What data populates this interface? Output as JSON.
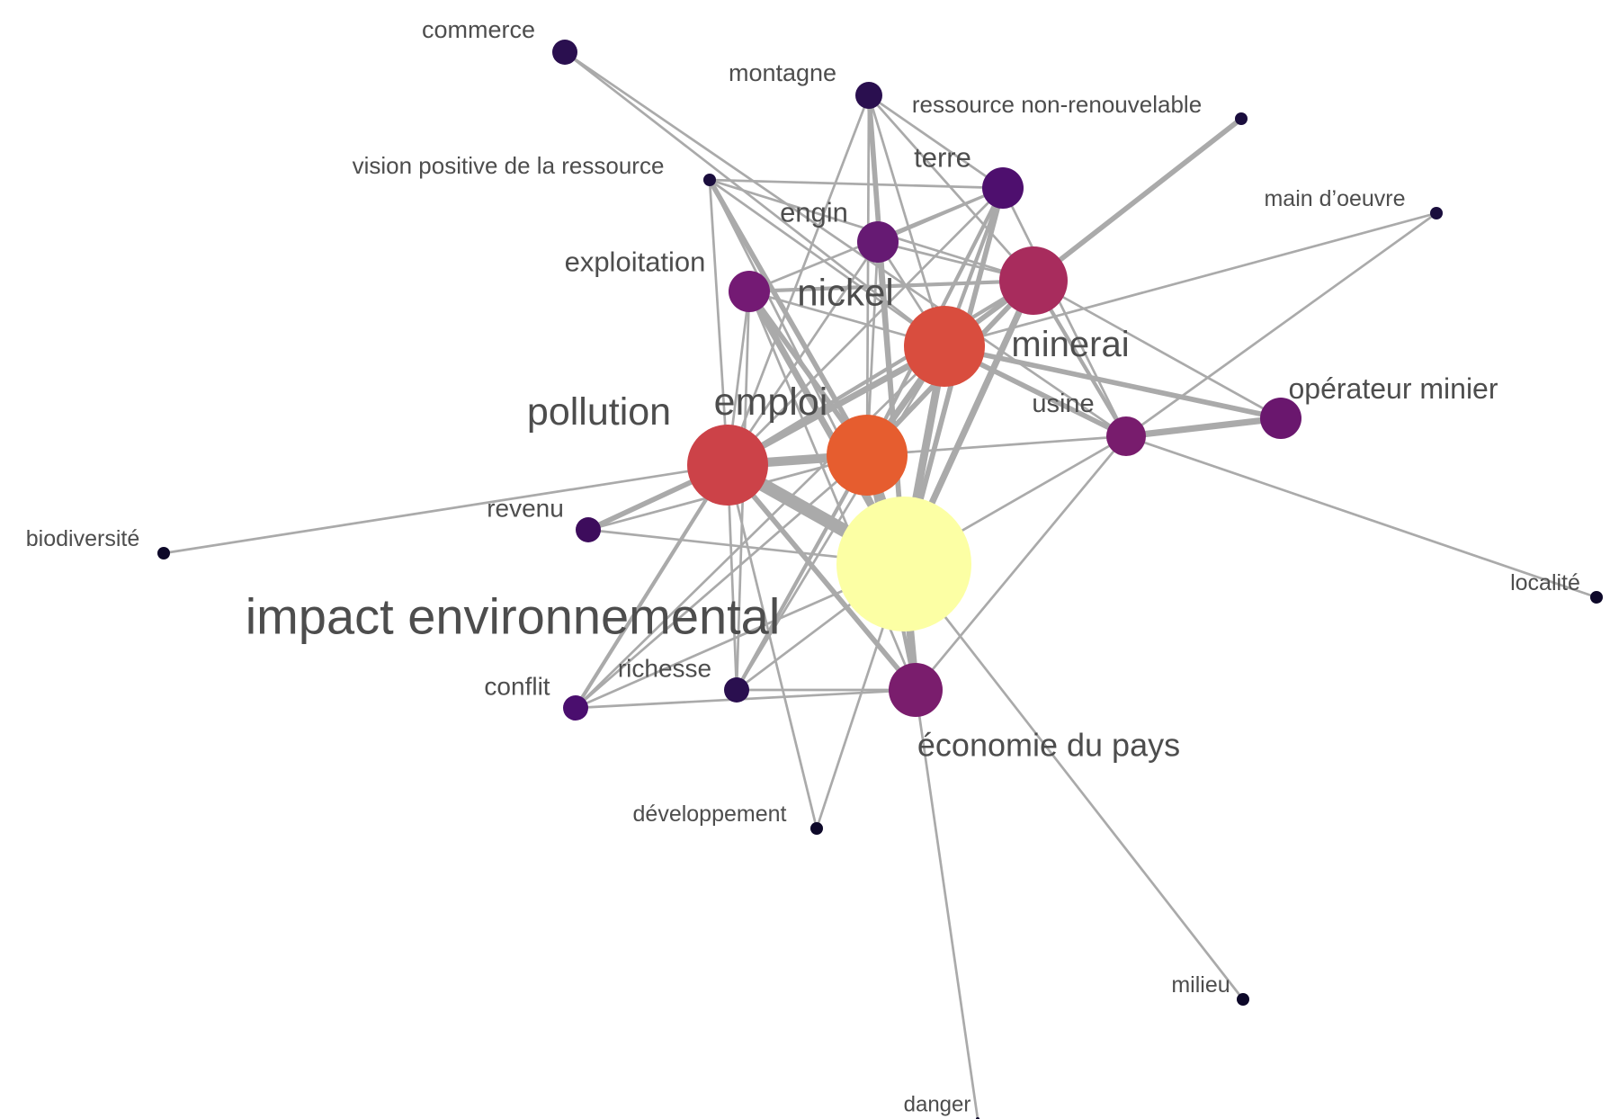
{
  "graph": {
    "edge_color": "#aaaaaa",
    "label_color": "#4d4d4d",
    "nodes": [
      {
        "id": "commerce",
        "label": "commerce",
        "color": "#2a0f4f"
      },
      {
        "id": "montagne",
        "label": "montagne",
        "color": "#2a0f4f"
      },
      {
        "id": "ressource",
        "label": "ressource non-renouvelable",
        "color": "#1a0d3d"
      },
      {
        "id": "vision",
        "label": "vision positive de la ressource",
        "color": "#1a0d3d"
      },
      {
        "id": "terre",
        "label": "terre",
        "color": "#4e0f6e"
      },
      {
        "id": "main",
        "label": "main d’oeuvre",
        "color": "#1a0d3d"
      },
      {
        "id": "engin",
        "label": "engin",
        "color": "#661a73"
      },
      {
        "id": "exploitation",
        "label": "exploitation",
        "color": "#741a74"
      },
      {
        "id": "nickel",
        "label": "nickel",
        "color": "#a82c5d"
      },
      {
        "id": "minerai",
        "label": "minerai",
        "color": "#d94d3e"
      },
      {
        "id": "usine",
        "label": "usine",
        "color": "#781c6d"
      },
      {
        "id": "operateur",
        "label": "opérateur minier",
        "color": "#6a176e"
      },
      {
        "id": "pollution",
        "label": "pollution",
        "color": "#cc4248"
      },
      {
        "id": "emploi",
        "label": "emploi",
        "color": "#e65d2f"
      },
      {
        "id": "revenu",
        "label": "revenu",
        "color": "#3d0c5c"
      },
      {
        "id": "biodiversite",
        "label": "biodiversité",
        "color": "#0d0829"
      },
      {
        "id": "impact",
        "label": "impact environnemental",
        "color": "#fcffa4"
      },
      {
        "id": "localite",
        "label": "localité",
        "color": "#0d0829"
      },
      {
        "id": "conflit",
        "label": "conflit",
        "color": "#4a0e6e"
      },
      {
        "id": "richesse",
        "label": "richesse",
        "color": "#2a0f4f"
      },
      {
        "id": "economie",
        "label": "économie du pays",
        "color": "#7a1d6d"
      },
      {
        "id": "developpement",
        "label": "développement",
        "color": "#0d0829"
      },
      {
        "id": "milieu",
        "label": "milieu",
        "color": "#0d0829"
      },
      {
        "id": "danger",
        "label": "danger",
        "color": "#0d0829"
      }
    ],
    "edges": [
      [
        "commerce",
        "minerai",
        1
      ],
      [
        "commerce",
        "usine",
        1
      ],
      [
        "montagne",
        "nickel",
        1
      ],
      [
        "montagne",
        "impact",
        3
      ],
      [
        "montagne",
        "minerai",
        1
      ],
      [
        "montagne",
        "emploi",
        1
      ],
      [
        "montagne",
        "terre",
        1
      ],
      [
        "montagne",
        "pollution",
        1
      ],
      [
        "ressource",
        "nickel",
        3
      ],
      [
        "vision",
        "terre",
        1
      ],
      [
        "vision",
        "emploi",
        3
      ],
      [
        "vision",
        "minerai",
        1
      ],
      [
        "vision",
        "pollution",
        1
      ],
      [
        "vision",
        "impact",
        1
      ],
      [
        "vision",
        "nickel",
        1
      ],
      [
        "terre",
        "minerai",
        2
      ],
      [
        "terre",
        "impact",
        3
      ],
      [
        "terre",
        "usine",
        1
      ],
      [
        "terre",
        "emploi",
        2
      ],
      [
        "terre",
        "pollution",
        1
      ],
      [
        "terre",
        "exploitation",
        1
      ],
      [
        "terre",
        "engin",
        1
      ],
      [
        "main",
        "usine",
        1
      ],
      [
        "main",
        "minerai",
        1
      ],
      [
        "engin",
        "minerai",
        1
      ],
      [
        "engin",
        "impact",
        2
      ],
      [
        "engin",
        "pollution",
        1
      ],
      [
        "engin",
        "nickel",
        1
      ],
      [
        "engin",
        "emploi",
        1
      ],
      [
        "exploitation",
        "nickel",
        2
      ],
      [
        "exploitation",
        "minerai",
        1
      ],
      [
        "exploitation",
        "impact",
        4
      ],
      [
        "exploitation",
        "emploi",
        3
      ],
      [
        "exploitation",
        "pollution",
        1
      ],
      [
        "exploitation",
        "economie",
        1
      ],
      [
        "exploitation",
        "richesse",
        1
      ],
      [
        "nickel",
        "minerai",
        3
      ],
      [
        "nickel",
        "emploi",
        3
      ],
      [
        "nickel",
        "impact",
        4
      ],
      [
        "nickel",
        "usine",
        2
      ],
      [
        "nickel",
        "operateur",
        1
      ],
      [
        "nickel",
        "pollution",
        2
      ],
      [
        "minerai",
        "impact",
        5
      ],
      [
        "minerai",
        "emploi",
        4
      ],
      [
        "minerai",
        "pollution",
        4
      ],
      [
        "minerai",
        "usine",
        3
      ],
      [
        "minerai",
        "operateur",
        3
      ],
      [
        "minerai",
        "richesse",
        1
      ],
      [
        "minerai",
        "conflit",
        1
      ],
      [
        "usine",
        "operateur",
        4
      ],
      [
        "usine",
        "emploi",
        1
      ],
      [
        "usine",
        "impact",
        1
      ],
      [
        "usine",
        "economie",
        1
      ],
      [
        "usine",
        "localite",
        1
      ],
      [
        "pollution",
        "emploi",
        6
      ],
      [
        "pollution",
        "impact",
        9
      ],
      [
        "pollution",
        "biodiversite",
        1
      ],
      [
        "pollution",
        "revenu",
        3
      ],
      [
        "pollution",
        "conflit",
        2
      ],
      [
        "pollution",
        "economie",
        3
      ],
      [
        "pollution",
        "richesse",
        1
      ],
      [
        "pollution",
        "developpement",
        1
      ],
      [
        "emploi",
        "impact",
        5
      ],
      [
        "emploi",
        "economie",
        2
      ],
      [
        "emploi",
        "revenu",
        1
      ],
      [
        "emploi",
        "conflit",
        1
      ],
      [
        "emploi",
        "richesse",
        2
      ],
      [
        "revenu",
        "impact",
        1
      ],
      [
        "impact",
        "economie",
        5
      ],
      [
        "impact",
        "conflit",
        1
      ],
      [
        "impact",
        "richesse",
        1
      ],
      [
        "impact",
        "milieu",
        1
      ],
      [
        "impact",
        "developpement",
        1
      ],
      [
        "conflit",
        "economie",
        1
      ],
      [
        "richesse",
        "economie",
        1
      ],
      [
        "economie",
        "danger",
        1
      ]
    ]
  }
}
